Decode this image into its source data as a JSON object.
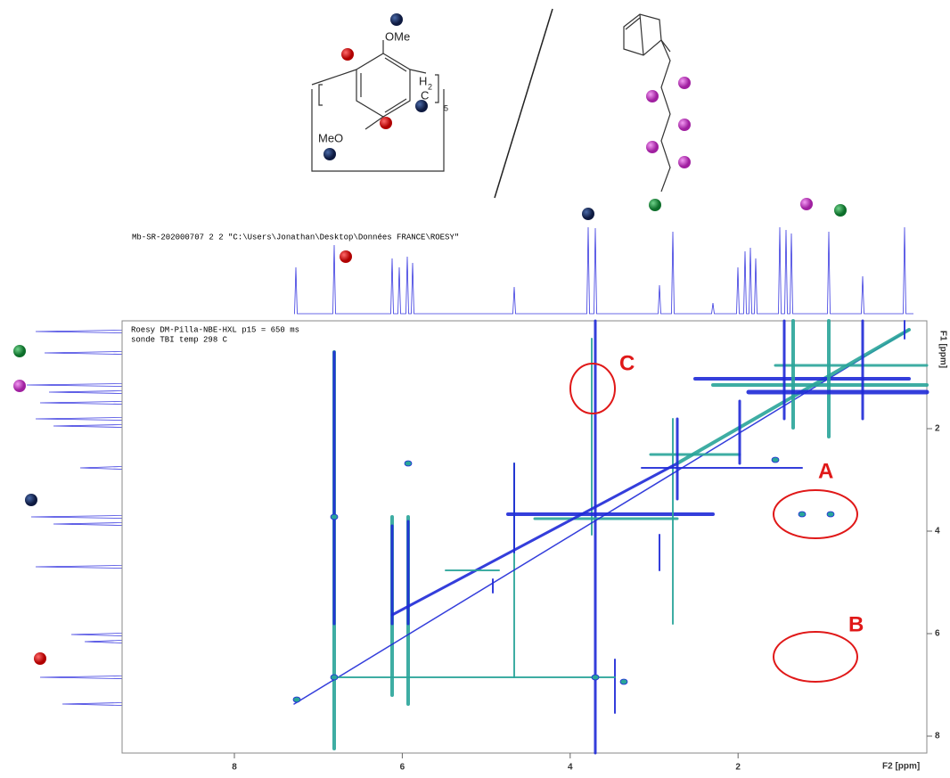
{
  "molecule": {
    "labels": [
      "OMe",
      "MeO",
      "H",
      "2",
      "C",
      "5"
    ]
  },
  "header": {
    "file_line": "Mb-SR-202000707  2  2  \"C:\\Users\\Jonathan\\Desktop\\Données FRANCE\\ROESY\"",
    "experiment": "Roesy DM-Pilla-NBE-HXL p15 = 650 ms",
    "probe": "sonde TBI temp 298 C"
  },
  "x_axis": {
    "label": "F2 [ppm]",
    "ticks": [
      8,
      6,
      4,
      2
    ]
  },
  "y_axis": {
    "label": "F1 [ppm]",
    "ticks": [
      2,
      4,
      6,
      8
    ]
  },
  "annotations": [
    "A",
    "B",
    "C"
  ]
}
